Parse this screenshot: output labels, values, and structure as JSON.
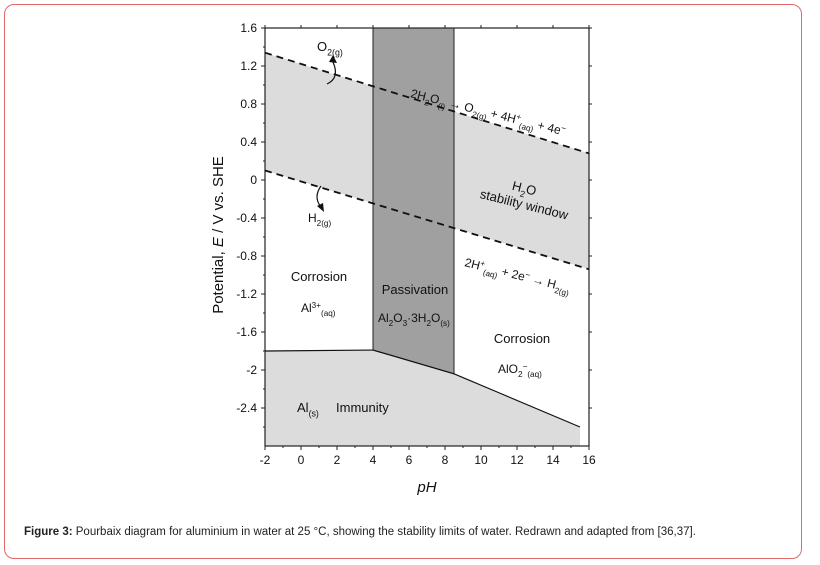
{
  "figure": {
    "caption_label": "Figure 3:",
    "caption_text": " Pourbaix diagram for aluminium in water at 25 °C, showing the stability limits of water. Redrawn and adapted from [36,37]."
  },
  "chart_data": {
    "type": "line",
    "title": "",
    "xlabel": "pH",
    "ylabel_parts": [
      "Potential, ",
      "E",
      " / V vs. SHE"
    ],
    "xlim": [
      -2,
      16
    ],
    "ylim": [
      -2.8,
      1.6
    ],
    "x_ticks": [
      -2,
      0,
      2,
      4,
      6,
      8,
      10,
      12,
      14,
      16
    ],
    "y_ticks": [
      1.6,
      1.2,
      0.8,
      0.4,
      0,
      -0.4,
      -0.8,
      -1.2,
      -1.6,
      -2,
      -2.4
    ],
    "series": [
      {
        "name": "O2/H2O line",
        "style": "dashed",
        "x": [
          -2,
          16
        ],
        "y": [
          1.34,
          0.28
        ]
      },
      {
        "name": "H+/H2 line",
        "style": "dashed",
        "x": [
          -2,
          16
        ],
        "y": [
          0.1,
          -0.94
        ]
      },
      {
        "name": "Al/Al3+ boundary",
        "style": "solid",
        "x": [
          -2,
          4
        ],
        "y": [
          -1.8,
          -1.79
        ]
      },
      {
        "name": "Al/Al2O3 boundary",
        "style": "solid",
        "x": [
          4,
          8.5
        ],
        "y": [
          -1.79,
          -2.04
        ]
      },
      {
        "name": "Al/AlO2- boundary",
        "style": "solid",
        "x": [
          8.5,
          10.5,
          15.5
        ],
        "y": [
          -2.04,
          -2.2,
          -2.6
        ]
      }
    ],
    "regions": [
      {
        "name": "Passivation",
        "phase": "Al2O3·3H2O(s)",
        "x_range": [
          4,
          8.5
        ]
      },
      {
        "name": "Corrosion",
        "phase": "Al3+(aq)"
      },
      {
        "name": "Corrosion",
        "phase": "AlO2−(aq)"
      },
      {
        "name": "Immunity",
        "phase": "Al(s)"
      },
      {
        "name": "H2O stability window"
      }
    ],
    "labels": {
      "o2": [
        "O",
        "2(g)"
      ],
      "h2": [
        "H",
        "2(g)"
      ],
      "o2_reaction": [
        "2H",
        "2",
        "O",
        "(l)",
        " → O",
        "2(g)",
        " + 4H",
        "+",
        "(aq)",
        " + 4e",
        "−"
      ],
      "h2_reaction": [
        "2H",
        "+",
        "(aq)",
        " + 2e",
        "−",
        " → H",
        "2(g)"
      ],
      "window": [
        "H",
        "2",
        "O",
        "stability window"
      ],
      "corrosion_left": "Corrosion",
      "al3": [
        "Al",
        "3+",
        "(aq)"
      ],
      "passivation": "Passivation",
      "al2o3": [
        "Al",
        "2",
        "O",
        "3",
        "·3H",
        "2",
        "O",
        "(s)"
      ],
      "corrosion_right": "Corrosion",
      "alo2": [
        "AlO",
        "2",
        "−",
        "(aq)"
      ],
      "al_s": [
        "Al",
        "(s)"
      ],
      "immunity": "Immunity"
    }
  }
}
